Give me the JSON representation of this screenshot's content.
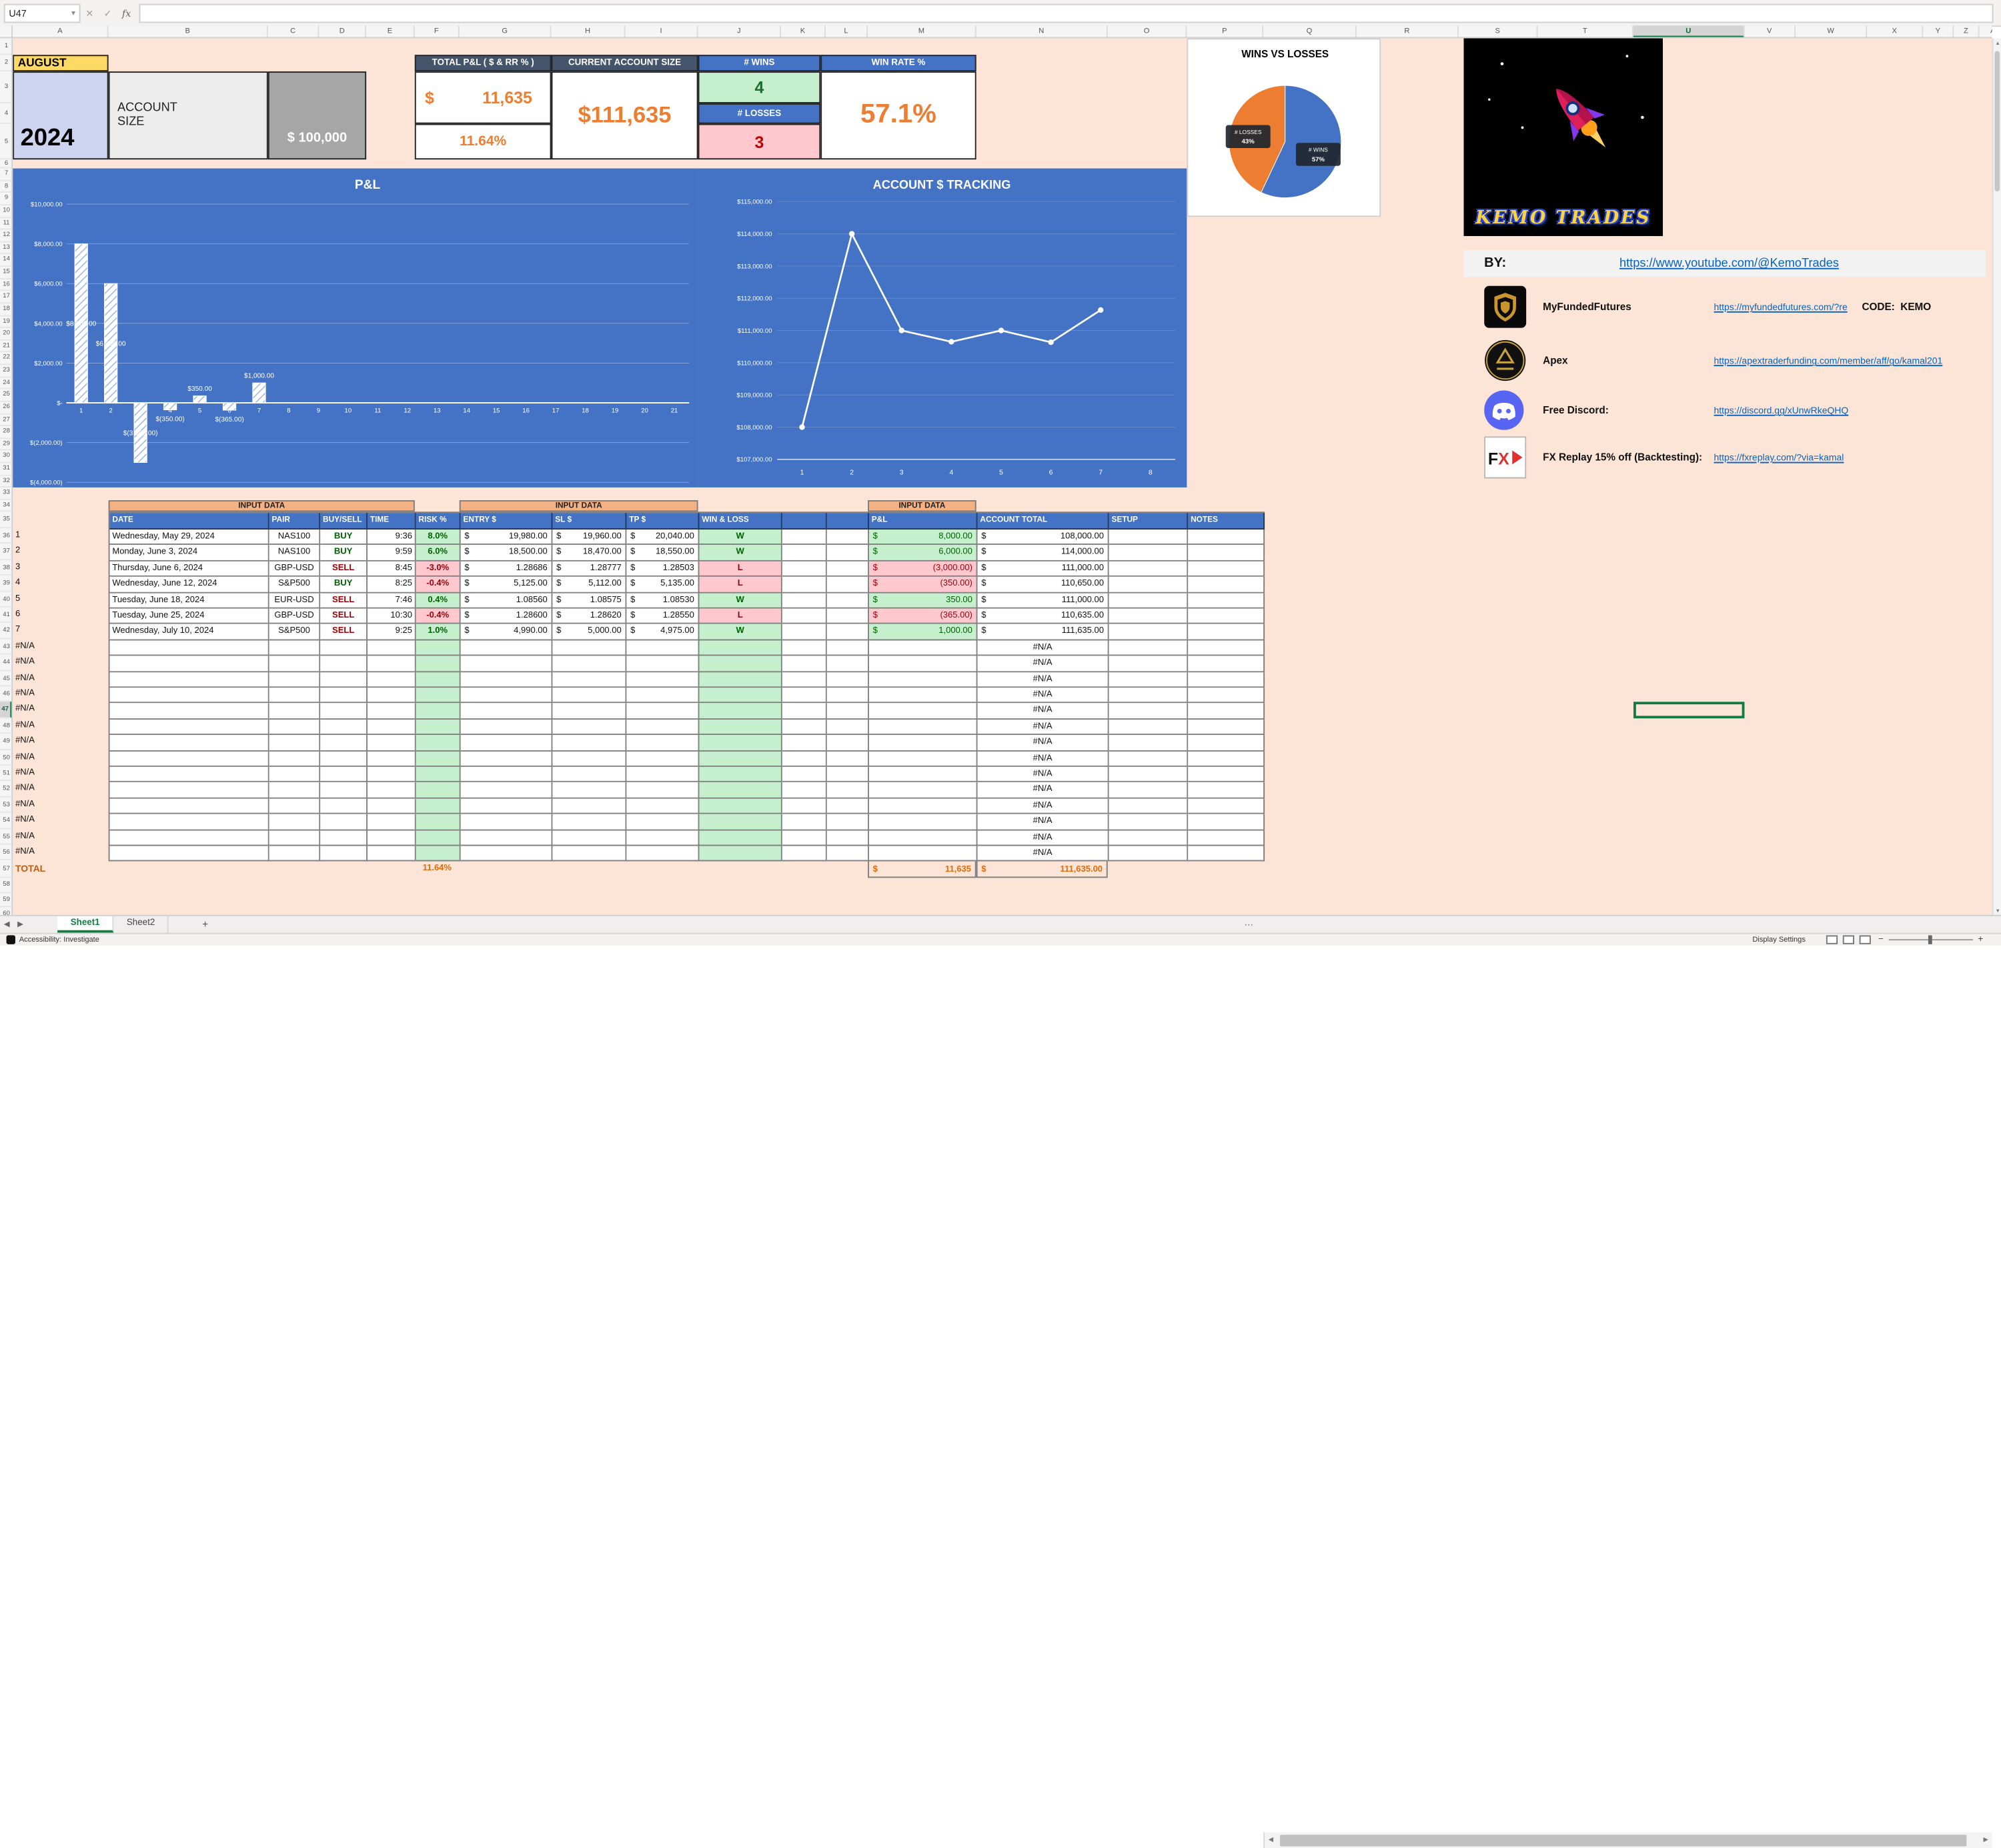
{
  "icons": {
    "cancel": "✕",
    "enter": "✓",
    "fx": "fx",
    "caret": "▾",
    "left": "◀",
    "right": "▶",
    "up": "▲",
    "down": "▼",
    "more": "⋯",
    "minus": "−",
    "plus": "+"
  },
  "excel": {
    "name_box": "U47",
    "formula_value": "",
    "selected_cell": "U47",
    "sheet_tabs": [
      "Sheet1",
      "Sheet2"
    ],
    "active_tab": "Sheet1",
    "status_left": "Accessibility: Investigate",
    "status_right": "Display Settings",
    "row_count": 60,
    "columns": [
      {
        "l": "A",
        "w": 75
      },
      {
        "l": "B",
        "w": 125
      },
      {
        "l": "C",
        "w": 40
      },
      {
        "l": "D",
        "w": 37
      },
      {
        "l": "E",
        "w": 38
      },
      {
        "l": "F",
        "w": 35
      },
      {
        "l": "G",
        "w": 72
      },
      {
        "l": "H",
        "w": 58
      },
      {
        "l": "I",
        "w": 57
      },
      {
        "l": "J",
        "w": 65
      },
      {
        "l": "K",
        "w": 35
      },
      {
        "l": "L",
        "w": 33
      },
      {
        "l": "M",
        "w": 85
      },
      {
        "l": "N",
        "w": 103
      },
      {
        "l": "O",
        "w": 62
      },
      {
        "l": "P",
        "w": 60
      },
      {
        "l": "Q",
        "w": 73
      },
      {
        "l": "R",
        "w": 80
      },
      {
        "l": "S",
        "w": 62
      },
      {
        "l": "T",
        "w": 75
      },
      {
        "l": "U",
        "w": 87
      },
      {
        "l": "V",
        "w": 40
      },
      {
        "l": "W",
        "w": 56
      },
      {
        "l": "X",
        "w": 44
      },
      {
        "l": "Y",
        "w": 24
      },
      {
        "l": "Z",
        "w": 20
      },
      {
        "l": "AA",
        "w": 26
      },
      {
        "l": "AB",
        "w": 26
      }
    ]
  },
  "summary": {
    "month": "AUGUST",
    "year": "2024",
    "account_size_label": "ACCOUNT SIZE",
    "account_size_value": "$ 100,000",
    "total_pnl": {
      "header": "TOTAL P&L ( $ & RR % )",
      "currency": "$",
      "value": "11,635",
      "percent": "11.64%"
    },
    "current_account": {
      "header": "CURRENT ACCOUNT SIZE",
      "value": "$111,635"
    },
    "wins": {
      "header": "# WINS",
      "value": "4"
    },
    "losses": {
      "header": "# LOSSES",
      "value": "3"
    },
    "win_rate": {
      "header": "WIN RATE %",
      "value": "57.1%"
    }
  },
  "chart_data": [
    {
      "type": "bar",
      "title": "P&L",
      "categories": [
        1,
        2,
        3,
        4,
        5,
        6,
        7,
        8,
        9,
        10,
        11,
        12,
        13,
        14,
        15,
        16,
        17,
        18,
        19,
        20,
        21
      ],
      "values": [
        8000,
        6000,
        -3000,
        -350,
        350,
        -365,
        1000
      ],
      "data_labels": [
        "$8,000.00",
        "$6,000.00",
        "$(3,000.00)",
        "$(350.00)",
        "$350.00",
        "$(365.00)",
        "$1,000.00"
      ],
      "ylim": [
        -4000,
        10000
      ],
      "ytick_step": 2000,
      "bg": "#4472c4",
      "grid": true,
      "legend": "none"
    },
    {
      "type": "line",
      "title": "ACCOUNT $ TRACKING",
      "categories": [
        1,
        2,
        3,
        4,
        5,
        6,
        7,
        8
      ],
      "values": [
        108000,
        114000,
        111000,
        110650,
        111000,
        110635,
        111635
      ],
      "ylim": [
        107000,
        115000
      ],
      "ytick_step": 1000,
      "bg": "#4472c4",
      "grid": false,
      "legend": "none"
    },
    {
      "type": "pie",
      "title": "WINS VS LOSSES",
      "slices": [
        {
          "label": "# WINS",
          "pct": 57,
          "color": "#4472c4"
        },
        {
          "label": "# LOSSES",
          "pct": 43,
          "color": "#ed7d31"
        }
      ],
      "legend": "none"
    }
  ],
  "branding": {
    "logo_text": "KEMO TRADES",
    "by_label": "BY:",
    "youtube_url": "https://www.youtube.com/@KemoTrades",
    "sponsors": [
      {
        "name": "MyFundedFutures",
        "url": "https://myfundedfutures.com/?re",
        "extra": "CODE:  KEMO",
        "icon": "myfundedfutures-icon"
      },
      {
        "name": "Apex",
        "url": "https://apextraderfunding.com/member/aff/go/kamal201",
        "extra": "",
        "icon": "apex-icon"
      },
      {
        "name": "Free Discord:",
        "url": "https://discord.gg/xUnwRkeQHQ",
        "extra": "",
        "icon": "discord-icon"
      },
      {
        "name": "FX Replay 15% off (Backtesting):",
        "url": "https://fxreplay.com/?via=kamal",
        "extra": "",
        "icon": "fx-replay-icon"
      }
    ]
  },
  "table": {
    "input_data_label": "INPUT DATA",
    "columns": [
      {
        "key": "date",
        "label": "DATE",
        "w": 125
      },
      {
        "key": "pair",
        "label": "PAIR",
        "w": 40
      },
      {
        "key": "side",
        "label": "BUY/SELL",
        "w": 37
      },
      {
        "key": "time",
        "label": "TIME",
        "w": 38
      },
      {
        "key": "risk",
        "label": "RISK %",
        "w": 35
      },
      {
        "key": "entry",
        "label": "ENTRY $",
        "w": 72
      },
      {
        "key": "sl",
        "label": "SL $",
        "w": 58
      },
      {
        "key": "tp",
        "label": "TP $",
        "w": 57
      },
      {
        "key": "wl",
        "label": "WIN & LOSS",
        "w": 65
      },
      {
        "key": "sp1",
        "label": "",
        "w": 35
      },
      {
        "key": "sp2",
        "label": "",
        "w": 33
      },
      {
        "key": "pnl",
        "label": "P&L",
        "w": 85
      },
      {
        "key": "total",
        "label": "ACCOUNT TOTAL",
        "w": 103
      },
      {
        "key": "setup",
        "label": "SETUP",
        "w": 62
      },
      {
        "key": "notes",
        "label": "NOTES",
        "w": 60
      }
    ],
    "rows": [
      {
        "n": "1",
        "date": "Wednesday, May 29, 2024",
        "pair": "NAS100",
        "side": "BUY",
        "time": "9:36",
        "risk": "8.0%",
        "entry": "19,980.00",
        "sl": "19,960.00",
        "tp": "20,040.00",
        "wl": "W",
        "pnl": "8,000.00",
        "total": "108,000.00"
      },
      {
        "n": "2",
        "date": "Monday, June 3, 2024",
        "pair": "NAS100",
        "side": "BUY",
        "time": "9:59",
        "risk": "6.0%",
        "entry": "18,500.00",
        "sl": "18,470.00",
        "tp": "18,550.00",
        "wl": "W",
        "pnl": "6,000.00",
        "total": "114,000.00"
      },
      {
        "n": "3",
        "date": "Thursday, June 6, 2024",
        "pair": "GBP-USD",
        "side": "SELL",
        "time": "8:45",
        "risk": "-3.0%",
        "entry": "1.28686",
        "sl": "1.28777",
        "tp": "1.28503",
        "wl": "L",
        "pnl": "(3,000.00)",
        "total": "111,000.00"
      },
      {
        "n": "4",
        "date": "Wednesday, June 12, 2024",
        "pair": "S&P500",
        "side": "BUY",
        "time": "8:25",
        "risk": "-0.4%",
        "entry": "5,125.00",
        "sl": "5,112.00",
        "tp": "5,135.00",
        "wl": "L",
        "pnl": "(350.00)",
        "total": "110,650.00"
      },
      {
        "n": "5",
        "date": "Tuesday, June 18, 2024",
        "pair": "EUR-USD",
        "side": "SELL",
        "time": "7:46",
        "risk": "0.4%",
        "entry": "1.08560",
        "sl": "1.08575",
        "tp": "1.08530",
        "wl": "W",
        "pnl": "350.00",
        "total": "111,000.00"
      },
      {
        "n": "6",
        "date": "Tuesday, June 25, 2024",
        "pair": "GBP-USD",
        "side": "SELL",
        "time": "10:30",
        "risk": "-0.4%",
        "entry": "1.28600",
        "sl": "1.28620",
        "tp": "1.28550",
        "wl": "L",
        "pnl": "(365.00)",
        "total": "110,635.00"
      },
      {
        "n": "7",
        "date": "Wednesday, July 10, 2024",
        "pair": "S&P500",
        "side": "SELL",
        "time": "9:25",
        "risk": "1.0%",
        "entry": "4,990.00",
        "sl": "5,000.00",
        "tp": "4,975.00",
        "wl": "W",
        "pnl": "1,000.00",
        "total": "111,635.00"
      }
    ],
    "na_text": "#N/A",
    "na_rows": 14,
    "currency": "$",
    "total_row": {
      "label": "TOTAL",
      "risk_percent": "11.64%",
      "currency": "$",
      "pnl": "11,635",
      "account_total": "111,635.00"
    }
  }
}
